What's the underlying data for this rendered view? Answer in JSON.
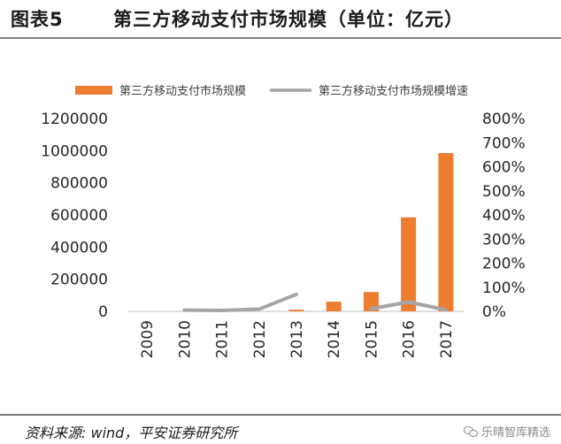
{
  "figure": {
    "label": "图表5",
    "title": "第三方移动支付市场规模（单位：亿元）"
  },
  "footer": {
    "source": "资料来源: wind，平安证券研究所",
    "watermark": "乐晴智库精选"
  },
  "chart_data": {
    "type": "bar+line",
    "categories": [
      "2009",
      "2010",
      "2011",
      "2012",
      "2013",
      "2014",
      "2015",
      "2016",
      "2017"
    ],
    "series": [
      {
        "name": "第三方移动支付市场规模",
        "type": "bar",
        "axis": "left",
        "color": "#ED7D31",
        "values": [
          0,
          0,
          0,
          0,
          10000,
          60000,
          120000,
          585000,
          985000
        ]
      },
      {
        "name": "第三方移动支付市场规模增速",
        "type": "line",
        "axis": "right",
        "color": "#A5A5A5",
        "values": [
          null,
          0.05,
          0.035,
          0.09,
          0.705,
          null,
          0.1,
          0.39,
          0.06
        ]
      }
    ],
    "left_axis": {
      "min": 0,
      "max": 1200000,
      "ticks": [
        "0",
        "200000",
        "400000",
        "600000",
        "800000",
        "1000000",
        "1200000"
      ]
    },
    "right_axis": {
      "min": 0,
      "max": 8,
      "ticks": [
        "0%",
        "100%",
        "200%",
        "300%",
        "400%",
        "500%",
        "600%",
        "700%",
        "800%"
      ]
    },
    "legend_position": "top",
    "grid": false
  }
}
